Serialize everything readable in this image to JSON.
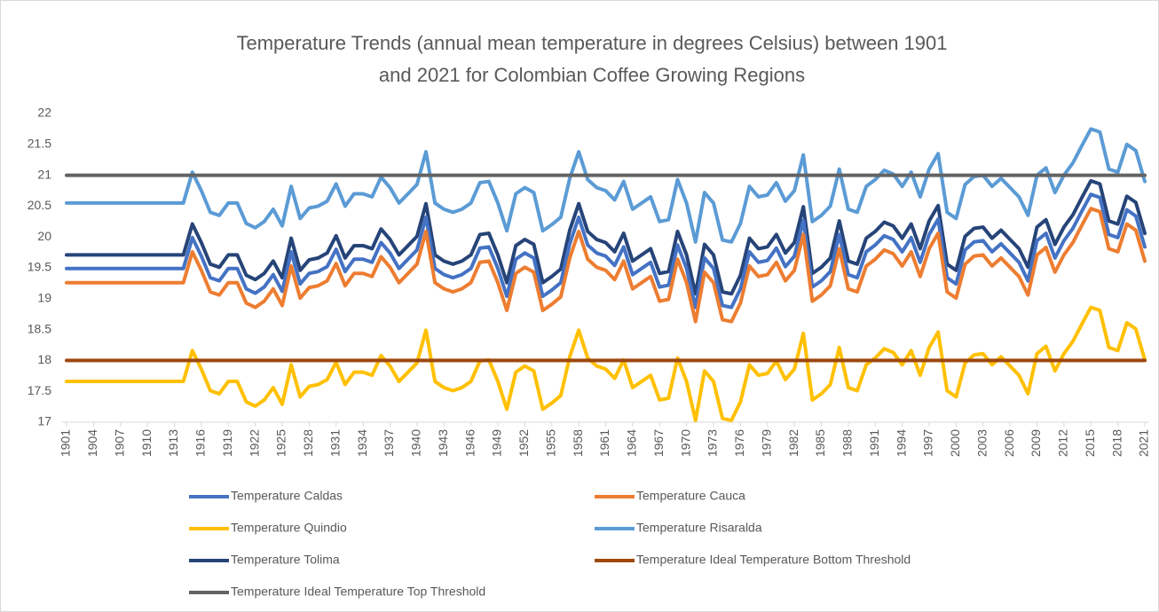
{
  "chart_data": {
    "type": "line",
    "title": [
      "Temperature Trends (annual mean temperature in degrees Celsius) between 1901",
      "and 2021 for Colombian Coffee Growing Regions"
    ],
    "categories": [
      "1901",
      null,
      null,
      "1904",
      null,
      null,
      "1907",
      null,
      null,
      "1910",
      null,
      null,
      "1913",
      null,
      null,
      "1916",
      null,
      null,
      "1919",
      null,
      null,
      "1922",
      null,
      null,
      "1925",
      null,
      null,
      "1928",
      null,
      null,
      "1931",
      null,
      null,
      "1934",
      null,
      null,
      "1937",
      null,
      null,
      "1940",
      null,
      null,
      "1943",
      null,
      null,
      "1946",
      null,
      null,
      "1949",
      null,
      null,
      "1952",
      null,
      null,
      "1955",
      null,
      null,
      "1958",
      null,
      null,
      "1961",
      null,
      null,
      "1964",
      null,
      null,
      "1967",
      null,
      null,
      "1970",
      null,
      null,
      "1973",
      null,
      null,
      "1976",
      null,
      null,
      "1979",
      null,
      null,
      "1982",
      null,
      null,
      "1985",
      null,
      null,
      "1988",
      null,
      null,
      "1991",
      null,
      null,
      "1994",
      null,
      null,
      "1997",
      null,
      null,
      "2000",
      null,
      null,
      "2003",
      null,
      null,
      "2006",
      null,
      null,
      "2009",
      null,
      null,
      "2012",
      null,
      null,
      "2015",
      null,
      null,
      "2018",
      null,
      null,
      "2021"
    ],
    "ylim": [
      17,
      22
    ],
    "yticks": [
      17,
      17.5,
      18,
      18.5,
      19,
      19.5,
      20,
      20.5,
      21,
      21.5,
      22
    ],
    "series": [
      {
        "name": "Temperature Caldas",
        "color": "#4472c4",
        "values": [
          19.49,
          19.49,
          19.49,
          19.49,
          19.49,
          19.49,
          19.49,
          19.49,
          19.49,
          19.49,
          19.49,
          19.49,
          19.49,
          19.49,
          19.99,
          19.69,
          19.34,
          19.29,
          19.49,
          19.49,
          19.16,
          19.09,
          19.19,
          19.39,
          19.12,
          19.76,
          19.24,
          19.41,
          19.44,
          19.52,
          19.8,
          19.44,
          19.64,
          19.64,
          19.59,
          19.91,
          19.74,
          19.49,
          19.64,
          19.79,
          20.32,
          19.49,
          19.39,
          19.34,
          19.39,
          19.49,
          19.82,
          19.84,
          19.49,
          19.04,
          19.64,
          19.74,
          19.66,
          19.04,
          19.14,
          19.26,
          19.89,
          20.32,
          19.87,
          19.74,
          19.69,
          19.54,
          19.84,
          19.39,
          19.49,
          19.59,
          19.19,
          19.22,
          19.87,
          19.49,
          18.86,
          19.66,
          19.49,
          18.89,
          18.86,
          19.16,
          19.76,
          19.59,
          19.62,
          19.82,
          19.52,
          19.69,
          20.27,
          19.19,
          19.29,
          19.44,
          20.04,
          19.39,
          19.34,
          19.76,
          19.87,
          20.02,
          19.96,
          19.76,
          19.99,
          19.59,
          20.04,
          20.29,
          19.34,
          19.24,
          19.79,
          19.92,
          19.94,
          19.76,
          19.89,
          19.74,
          19.59,
          19.29,
          19.94,
          20.06,
          19.66,
          19.94,
          20.14,
          20.42,
          20.69,
          20.64,
          20.04,
          19.99,
          20.44,
          20.34,
          19.84
        ]
      },
      {
        "name": "Temperature Cauca",
        "color": "#ed7d31",
        "values": [
          19.26,
          19.26,
          19.26,
          19.26,
          19.26,
          19.26,
          19.26,
          19.26,
          19.26,
          19.26,
          19.26,
          19.26,
          19.26,
          19.26,
          19.76,
          19.46,
          19.11,
          19.06,
          19.26,
          19.26,
          18.93,
          18.86,
          18.96,
          19.16,
          18.89,
          19.53,
          19.01,
          19.18,
          19.21,
          19.29,
          19.57,
          19.21,
          19.41,
          19.41,
          19.36,
          19.68,
          19.51,
          19.26,
          19.41,
          19.56,
          20.09,
          19.26,
          19.16,
          19.11,
          19.16,
          19.26,
          19.59,
          19.61,
          19.26,
          18.81,
          19.41,
          19.51,
          19.43,
          18.81,
          18.91,
          19.03,
          19.66,
          20.09,
          19.64,
          19.51,
          19.46,
          19.31,
          19.61,
          19.16,
          19.26,
          19.36,
          18.96,
          18.99,
          19.64,
          19.26,
          18.63,
          19.43,
          19.26,
          18.66,
          18.63,
          18.93,
          19.53,
          19.36,
          19.39,
          19.59,
          19.29,
          19.46,
          20.04,
          18.96,
          19.06,
          19.21,
          19.81,
          19.16,
          19.11,
          19.53,
          19.64,
          19.79,
          19.73,
          19.53,
          19.76,
          19.36,
          19.81,
          20.06,
          19.11,
          19.01,
          19.56,
          19.69,
          19.71,
          19.53,
          19.66,
          19.51,
          19.36,
          19.06,
          19.71,
          19.83,
          19.43,
          19.71,
          19.91,
          20.19,
          20.46,
          20.41,
          19.81,
          19.76,
          20.21,
          20.11,
          19.61
        ]
      },
      {
        "name": "Temperature Quindio",
        "color": "#ffc000",
        "values": [
          17.66,
          17.66,
          17.66,
          17.66,
          17.66,
          17.66,
          17.66,
          17.66,
          17.66,
          17.66,
          17.66,
          17.66,
          17.66,
          17.66,
          18.16,
          17.86,
          17.51,
          17.46,
          17.66,
          17.66,
          17.33,
          17.26,
          17.36,
          17.56,
          17.29,
          17.93,
          17.41,
          17.58,
          17.61,
          17.69,
          17.97,
          17.61,
          17.81,
          17.81,
          17.76,
          18.08,
          17.91,
          17.66,
          17.81,
          17.96,
          18.49,
          17.66,
          17.56,
          17.51,
          17.56,
          17.66,
          17.99,
          18.01,
          17.66,
          17.21,
          17.81,
          17.91,
          17.83,
          17.21,
          17.31,
          17.43,
          18.06,
          18.49,
          18.04,
          17.91,
          17.86,
          17.71,
          18.01,
          17.56,
          17.66,
          17.76,
          17.36,
          17.39,
          18.04,
          17.66,
          17.03,
          17.83,
          17.66,
          17.06,
          17.03,
          17.33,
          17.93,
          17.76,
          17.79,
          17.99,
          17.69,
          17.86,
          18.44,
          17.36,
          17.46,
          17.61,
          18.21,
          17.56,
          17.51,
          17.93,
          18.04,
          18.19,
          18.13,
          17.93,
          18.16,
          17.76,
          18.21,
          18.46,
          17.51,
          17.41,
          17.96,
          18.09,
          18.11,
          17.93,
          18.06,
          17.91,
          17.76,
          17.46,
          18.11,
          18.23,
          17.83,
          18.11,
          18.31,
          18.59,
          18.86,
          18.81,
          18.21,
          18.16,
          18.61,
          18.51,
          18.01
        ]
      },
      {
        "name": "Temperature Risaralda",
        "color": "#5b9bd5",
        "values": [
          20.55,
          20.55,
          20.55,
          20.55,
          20.55,
          20.55,
          20.55,
          20.55,
          20.55,
          20.55,
          20.55,
          20.55,
          20.55,
          20.55,
          21.05,
          20.75,
          20.4,
          20.35,
          20.55,
          20.55,
          20.22,
          20.15,
          20.25,
          20.45,
          20.18,
          20.82,
          20.3,
          20.47,
          20.5,
          20.58,
          20.86,
          20.5,
          20.7,
          20.7,
          20.65,
          20.97,
          20.8,
          20.55,
          20.7,
          20.85,
          21.38,
          20.55,
          20.45,
          20.4,
          20.45,
          20.55,
          20.88,
          20.9,
          20.55,
          20.1,
          20.7,
          20.8,
          20.72,
          20.1,
          20.2,
          20.32,
          20.95,
          21.38,
          20.93,
          20.8,
          20.75,
          20.6,
          20.9,
          20.45,
          20.55,
          20.65,
          20.25,
          20.28,
          20.93,
          20.55,
          19.92,
          20.72,
          20.55,
          19.95,
          19.92,
          20.22,
          20.82,
          20.65,
          20.68,
          20.88,
          20.58,
          20.75,
          21.33,
          20.25,
          20.35,
          20.5,
          21.1,
          20.45,
          20.4,
          20.82,
          20.93,
          21.08,
          21.02,
          20.82,
          21.05,
          20.65,
          21.1,
          21.35,
          20.4,
          20.3,
          20.85,
          20.98,
          21.0,
          20.82,
          20.95,
          20.8,
          20.65,
          20.35,
          21.0,
          21.12,
          20.72,
          21.0,
          21.2,
          21.48,
          21.75,
          21.7,
          21.1,
          21.05,
          21.5,
          21.4,
          20.9
        ]
      },
      {
        "name": "Temperature Tolima",
        "color": "#264478",
        "values": [
          19.71,
          19.71,
          19.71,
          19.71,
          19.71,
          19.71,
          19.71,
          19.71,
          19.71,
          19.71,
          19.71,
          19.71,
          19.71,
          19.71,
          20.21,
          19.91,
          19.56,
          19.51,
          19.71,
          19.71,
          19.38,
          19.31,
          19.41,
          19.61,
          19.34,
          19.98,
          19.46,
          19.63,
          19.66,
          19.74,
          20.02,
          19.66,
          19.86,
          19.86,
          19.81,
          20.13,
          19.96,
          19.71,
          19.86,
          20.01,
          20.54,
          19.71,
          19.61,
          19.56,
          19.61,
          19.71,
          20.04,
          20.06,
          19.71,
          19.26,
          19.86,
          19.96,
          19.88,
          19.26,
          19.36,
          19.48,
          20.11,
          20.54,
          20.09,
          19.96,
          19.91,
          19.76,
          20.06,
          19.61,
          19.71,
          19.81,
          19.41,
          19.44,
          20.09,
          19.71,
          19.08,
          19.88,
          19.71,
          19.11,
          19.08,
          19.38,
          19.98,
          19.81,
          19.84,
          20.04,
          19.74,
          19.91,
          20.49,
          19.41,
          19.51,
          19.66,
          20.26,
          19.61,
          19.56,
          19.98,
          20.09,
          20.24,
          20.18,
          19.98,
          20.21,
          19.81,
          20.26,
          20.51,
          19.56,
          19.46,
          20.01,
          20.14,
          20.16,
          19.98,
          20.11,
          19.96,
          19.81,
          19.51,
          20.16,
          20.28,
          19.88,
          20.16,
          20.36,
          20.64,
          20.91,
          20.86,
          20.26,
          20.21,
          20.66,
          20.56,
          20.06
        ]
      },
      {
        "name": "Temperature Ideal Temperature Bottom Threshold",
        "color": "#9e480e",
        "values": [
          18,
          18,
          18,
          18,
          18,
          18,
          18,
          18,
          18,
          18,
          18,
          18,
          18,
          18,
          18,
          18,
          18,
          18,
          18,
          18,
          18,
          18,
          18,
          18,
          18,
          18,
          18,
          18,
          18,
          18,
          18,
          18,
          18,
          18,
          18,
          18,
          18,
          18,
          18,
          18,
          18,
          18,
          18,
          18,
          18,
          18,
          18,
          18,
          18,
          18,
          18,
          18,
          18,
          18,
          18,
          18,
          18,
          18,
          18,
          18,
          18,
          18,
          18,
          18,
          18,
          18,
          18,
          18,
          18,
          18,
          18,
          18,
          18,
          18,
          18,
          18,
          18,
          18,
          18,
          18,
          18,
          18,
          18,
          18,
          18,
          18,
          18,
          18,
          18,
          18,
          18,
          18,
          18,
          18,
          18,
          18,
          18,
          18,
          18,
          18,
          18,
          18,
          18,
          18,
          18,
          18,
          18,
          18,
          18,
          18,
          18,
          18,
          18,
          18,
          18,
          18,
          18,
          18,
          18,
          18,
          18
        ]
      },
      {
        "name": "Temperature Ideal Temperature Top Threshold",
        "color": "#636363",
        "values": [
          21,
          21,
          21,
          21,
          21,
          21,
          21,
          21,
          21,
          21,
          21,
          21,
          21,
          21,
          21,
          21,
          21,
          21,
          21,
          21,
          21,
          21,
          21,
          21,
          21,
          21,
          21,
          21,
          21,
          21,
          21,
          21,
          21,
          21,
          21,
          21,
          21,
          21,
          21,
          21,
          21,
          21,
          21,
          21,
          21,
          21,
          21,
          21,
          21,
          21,
          21,
          21,
          21,
          21,
          21,
          21,
          21,
          21,
          21,
          21,
          21,
          21,
          21,
          21,
          21,
          21,
          21,
          21,
          21,
          21,
          21,
          21,
          21,
          21,
          21,
          21,
          21,
          21,
          21,
          21,
          21,
          21,
          21,
          21,
          21,
          21,
          21,
          21,
          21,
          21,
          21,
          21,
          21,
          21,
          21,
          21,
          21,
          21,
          21,
          21,
          21,
          21,
          21,
          21,
          21,
          21,
          21,
          21,
          21,
          21,
          21,
          21,
          21,
          21,
          21,
          21,
          21,
          21,
          21,
          21,
          21
        ]
      }
    ]
  }
}
